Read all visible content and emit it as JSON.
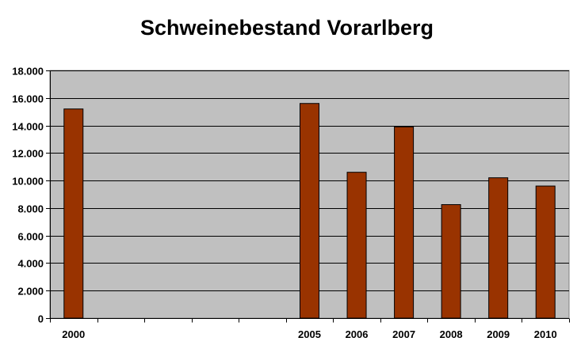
{
  "chart_data": {
    "type": "bar",
    "title": "Schweinebestand Vorarlberg",
    "xlabel": "",
    "ylabel": "",
    "categories": [
      "2000",
      "",
      "",
      "",
      "",
      "2005",
      "2006",
      "2007",
      "2008",
      "2009",
      "2010"
    ],
    "values": [
      15200,
      null,
      null,
      null,
      null,
      15600,
      10600,
      13900,
      8250,
      10200,
      9600
    ],
    "ylim": [
      0,
      18000
    ],
    "yticks": [
      0,
      2000,
      4000,
      6000,
      8000,
      10000,
      12000,
      14000,
      16000,
      18000
    ],
    "ytick_labels": [
      "0",
      "2.000",
      "4.000",
      "6.000",
      "8.000",
      "10.000",
      "12.000",
      "14.000",
      "16.000",
      "18.000"
    ],
    "grid": true,
    "legend": "none",
    "colors": {
      "bar": "#993300",
      "plot_background": "#c0c0c0",
      "gridline": "#000000"
    }
  }
}
